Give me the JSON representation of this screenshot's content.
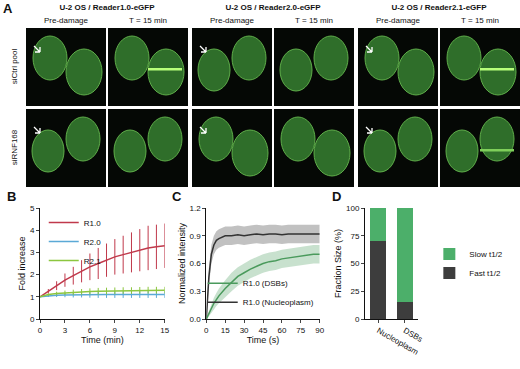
{
  "panel_a": {
    "label": "A",
    "groups": [
      {
        "title": "U-2 OS / Reader1.0-eGFP",
        "columns": [
          "Pre-damage",
          "T = 15 min"
        ]
      },
      {
        "title": "U-2 OS / Reader2.0-eGFP",
        "columns": [
          "Pre-damage",
          "T = 15 min"
        ]
      },
      {
        "title": "U-2 OS / Reader2.1-eGFP",
        "columns": [
          "Pre-damage",
          "T = 15 min"
        ]
      }
    ],
    "rows": [
      "siCtrl pool",
      "siRNF168"
    ]
  },
  "chart_data": [
    {
      "label": "B",
      "type": "line",
      "x_label": "Time (min)",
      "y_label": "Fold increase",
      "x": [
        0,
        1,
        2,
        3,
        4,
        5,
        6,
        7,
        8,
        9,
        10,
        11,
        12,
        13,
        14,
        15
      ],
      "xlim": [
        0,
        15
      ],
      "xticks": [
        0,
        3,
        6,
        9,
        12,
        15
      ],
      "ylim": [
        0,
        5
      ],
      "yticks": [
        0,
        1,
        2,
        3,
        4,
        5
      ],
      "legend": "upper left",
      "series": [
        {
          "name": "R1.0",
          "color": "#c0394b",
          "values": [
            1.0,
            1.25,
            1.5,
            1.75,
            1.95,
            2.15,
            2.35,
            2.5,
            2.65,
            2.8,
            2.9,
            3.0,
            3.1,
            3.2,
            3.25,
            3.3
          ],
          "error": [
            0,
            0.1,
            0.2,
            0.3,
            0.4,
            0.5,
            0.6,
            0.7,
            0.75,
            0.8,
            0.85,
            0.9,
            0.95,
            1.0,
            1.0,
            1.0
          ]
        },
        {
          "name": "R2.0",
          "color": "#5aa9d6",
          "values": [
            1.0,
            1.04,
            1.07,
            1.08,
            1.09,
            1.1,
            1.1,
            1.1,
            1.1,
            1.1,
            1.1,
            1.1,
            1.1,
            1.1,
            1.1,
            1.1
          ],
          "error": [
            0,
            0.05,
            0.08,
            0.1,
            0.12,
            0.13,
            0.14,
            0.15,
            0.15,
            0.15,
            0.15,
            0.15,
            0.15,
            0.15,
            0.15,
            0.15
          ]
        },
        {
          "name": "R2.1",
          "color": "#8cc63f",
          "values": [
            1.0,
            1.1,
            1.15,
            1.18,
            1.2,
            1.22,
            1.24,
            1.25,
            1.26,
            1.27,
            1.28,
            1.28,
            1.29,
            1.3,
            1.3,
            1.3
          ],
          "error": [
            0,
            0.05,
            0.08,
            0.1,
            0.12,
            0.13,
            0.14,
            0.15,
            0.15,
            0.15,
            0.15,
            0.15,
            0.15,
            0.15,
            0.15,
            0.15
          ]
        }
      ]
    },
    {
      "label": "C",
      "type": "line",
      "x_label": "Time (s)",
      "y_label": "Normalized intensity",
      "x": [
        0,
        2,
        4,
        6,
        8,
        10,
        15,
        20,
        25,
        30,
        35,
        40,
        45,
        50,
        55,
        60,
        65,
        70,
        75,
        80,
        85,
        90
      ],
      "xlim": [
        0,
        90
      ],
      "xticks": [
        0,
        15,
        30,
        45,
        60,
        75,
        90
      ],
      "ylim": [
        0,
        1.2
      ],
      "yticks": [
        {
          "value": 0,
          "label": "0.0"
        },
        {
          "value": 0.3,
          "label": "0.3"
        },
        {
          "value": 0.6,
          "label": "0.6"
        },
        {
          "value": 0.9,
          "label": "0.9"
        },
        {
          "value": 1.2,
          "label": "1.2"
        }
      ],
      "legend": "lower right",
      "series": [
        {
          "name": "R1.0 (Nucleoplasm)",
          "color": "#333333",
          "values": [
            0,
            0.45,
            0.7,
            0.8,
            0.85,
            0.87,
            0.9,
            0.9,
            0.91,
            0.9,
            0.91,
            0.92,
            0.91,
            0.92,
            0.92,
            0.91,
            0.92,
            0.92,
            0.92,
            0.92,
            0.92,
            0.92
          ],
          "error": [
            0.02,
            0.1,
            0.1,
            0.1,
            0.1,
            0.1,
            0.1,
            0.1,
            0.1,
            0.1,
            0.1,
            0.1,
            0.1,
            0.1,
            0.1,
            0.1,
            0.1,
            0.1,
            0.1,
            0.1,
            0.1,
            0.1
          ]
        },
        {
          "name": "R1.0 (DSBs)",
          "color": "#4a9a5c",
          "values": [
            0,
            0.06,
            0.12,
            0.17,
            0.21,
            0.25,
            0.33,
            0.4,
            0.46,
            0.5,
            0.54,
            0.57,
            0.6,
            0.62,
            0.63,
            0.65,
            0.66,
            0.67,
            0.68,
            0.69,
            0.7,
            0.7
          ],
          "error": [
            0.01,
            0.03,
            0.05,
            0.06,
            0.07,
            0.08,
            0.09,
            0.1,
            0.1,
            0.1,
            0.1,
            0.1,
            0.1,
            0.1,
            0.1,
            0.1,
            0.1,
            0.1,
            0.1,
            0.1,
            0.1,
            0.1
          ]
        }
      ]
    },
    {
      "label": "D",
      "type": "bar",
      "stacked": true,
      "y_label": "Fraction Size (%)",
      "categories": [
        "Nucleoplasm",
        "DSBs"
      ],
      "ylim": [
        0,
        100
      ],
      "yticks": [
        0,
        25,
        50,
        75,
        100
      ],
      "legend": "right",
      "series": [
        {
          "name": "Fast t1/2",
          "color": "#3d3d3d",
          "values": [
            70,
            15
          ]
        },
        {
          "name": "Slow t1/2",
          "color": "#4caf6a",
          "values": [
            30,
            85
          ]
        }
      ]
    }
  ]
}
